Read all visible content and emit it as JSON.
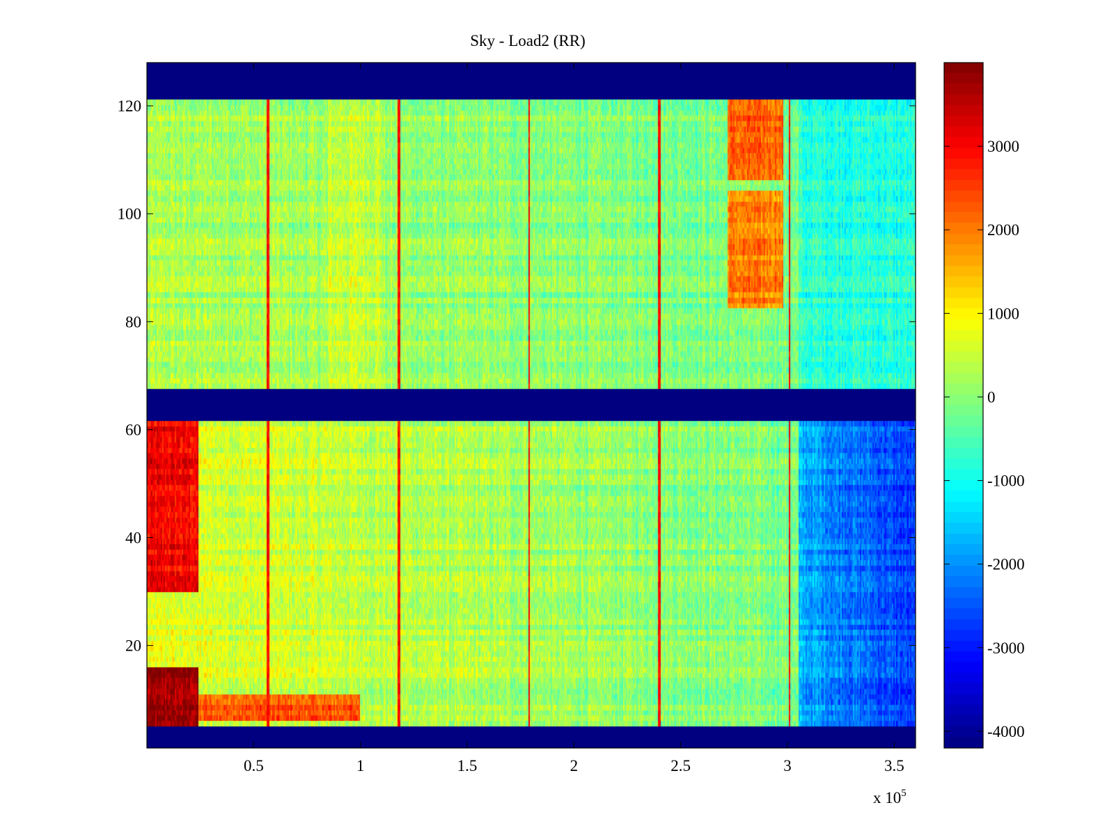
{
  "chart_data": {
    "type": "heatmap",
    "title": "Sky - Load2 (RR)",
    "xlabel": "",
    "ylabel": "",
    "x_exponent_label": "x 10",
    "x_exponent_power": "5",
    "xlim": [
      0,
      3.6
    ],
    "ylim": [
      1,
      128
    ],
    "x_ticks": [
      0.5,
      1,
      1.5,
      2,
      2.5,
      3,
      3.5
    ],
    "x_tick_labels": [
      "0.5",
      "1",
      "1.5",
      "2",
      "2.5",
      "3",
      "3.5"
    ],
    "y_ticks": [
      20,
      40,
      60,
      80,
      100,
      120
    ],
    "y_tick_labels": [
      "20",
      "40",
      "60",
      "80",
      "100",
      "120"
    ],
    "colorbar": {
      "colormap": "jet",
      "clim": [
        -4200,
        4000
      ],
      "ticks": [
        -4000,
        -3000,
        -2000,
        -1000,
        0,
        1000,
        2000,
        3000
      ],
      "tick_labels": [
        "-4000",
        "-3000",
        "-2000",
        "-1000",
        "0",
        "1000",
        "2000",
        "3000"
      ]
    },
    "masked_rows": [
      [
        1,
        4
      ],
      [
        62,
        67
      ],
      [
        122,
        128
      ]
    ],
    "masked_value": -4200,
    "vertical_lines_x": [
      0.57,
      1.18,
      1.79,
      2.4,
      3.01
    ],
    "hot_blocks": [
      {
        "x": [
          0.0,
          0.24
        ],
        "y": [
          4,
          16
        ],
        "value": 3800
      },
      {
        "x": [
          0.0,
          0.24
        ],
        "y": [
          30,
          62
        ],
        "value": 3000
      },
      {
        "x": [
          2.72,
          2.98
        ],
        "y": [
          106,
          121
        ],
        "value": 2200
      },
      {
        "x": [
          2.72,
          2.98
        ],
        "y": [
          82,
          104
        ],
        "value": 1900
      },
      {
        "x": [
          0.24,
          1.0
        ],
        "y": [
          6,
          11
        ],
        "value": 2300
      }
    ],
    "cold_regions": [
      {
        "x": [
          3.05,
          3.6
        ],
        "y": [
          4,
          62
        ],
        "value": -2500
      },
      {
        "x": [
          3.05,
          3.6
        ],
        "y": [
          68,
          121
        ],
        "value": -900
      }
    ]
  }
}
